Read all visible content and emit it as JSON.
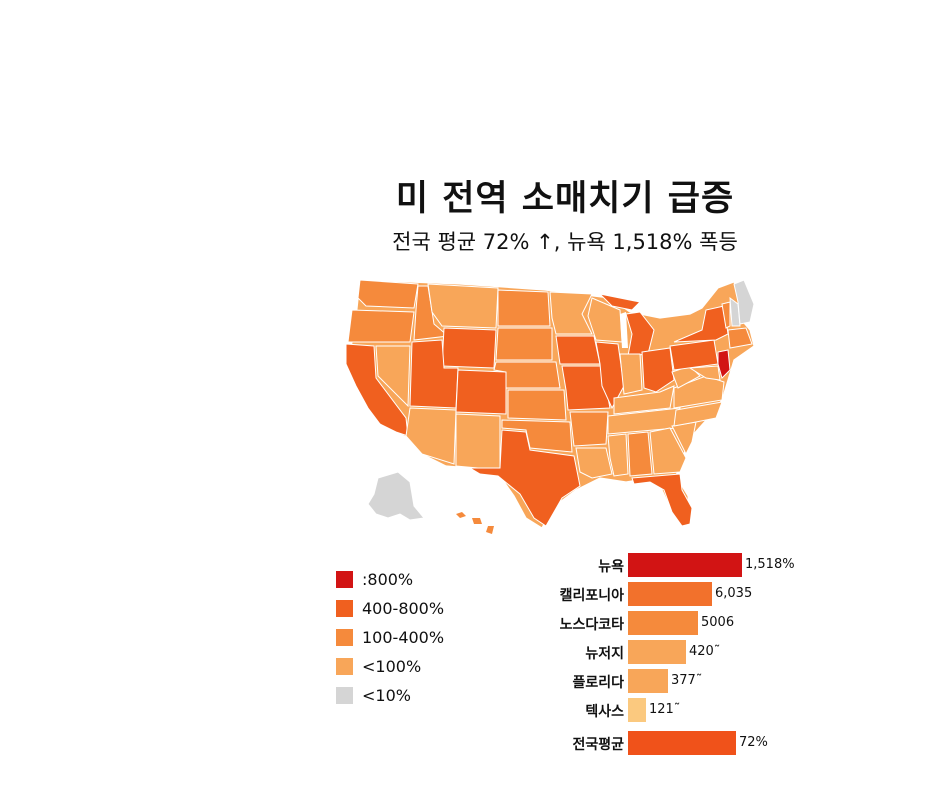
{
  "title": "미 전역 소매치기 급증",
  "subtitle": "전국 평균 72% ↑, 뉴욕 1,518% 폭등",
  "colors": {
    "extreme": "#d21414",
    "high": "#f0601f",
    "mid": "#f58a3c",
    "low": "#f8a659",
    "none": "#d5d5d5",
    "pale": "#fbc97f"
  },
  "legend": [
    {
      "label": ":800%",
      "color": "#d21414"
    },
    {
      "label": "400-800%",
      "color": "#f0601f"
    },
    {
      "label": "100-400%",
      "color": "#f58a3c"
    },
    {
      "label": "<100%",
      "color": "#f8a659"
    },
    {
      "label": "<10%",
      "color": "#d5d5d5"
    }
  ],
  "chart_data": {
    "type": "bar",
    "categories": [
      "뉴욕",
      "캘리포니아",
      "노스다코타",
      "뉴저지",
      "플로리다",
      "텍사스",
      "전국평균"
    ],
    "value_labels": [
      "1,518%",
      "6,035",
      "5006",
      "420˜",
      "377˜",
      "121˜",
      "72%"
    ],
    "values": [
      1518,
      6035,
      5006,
      420,
      377,
      121,
      72
    ],
    "colors": [
      "#d21414",
      "#f2712c",
      "#f58a3c",
      "#f8a659",
      "#f8a659",
      "#fbc97f",
      "#f0521a"
    ]
  }
}
